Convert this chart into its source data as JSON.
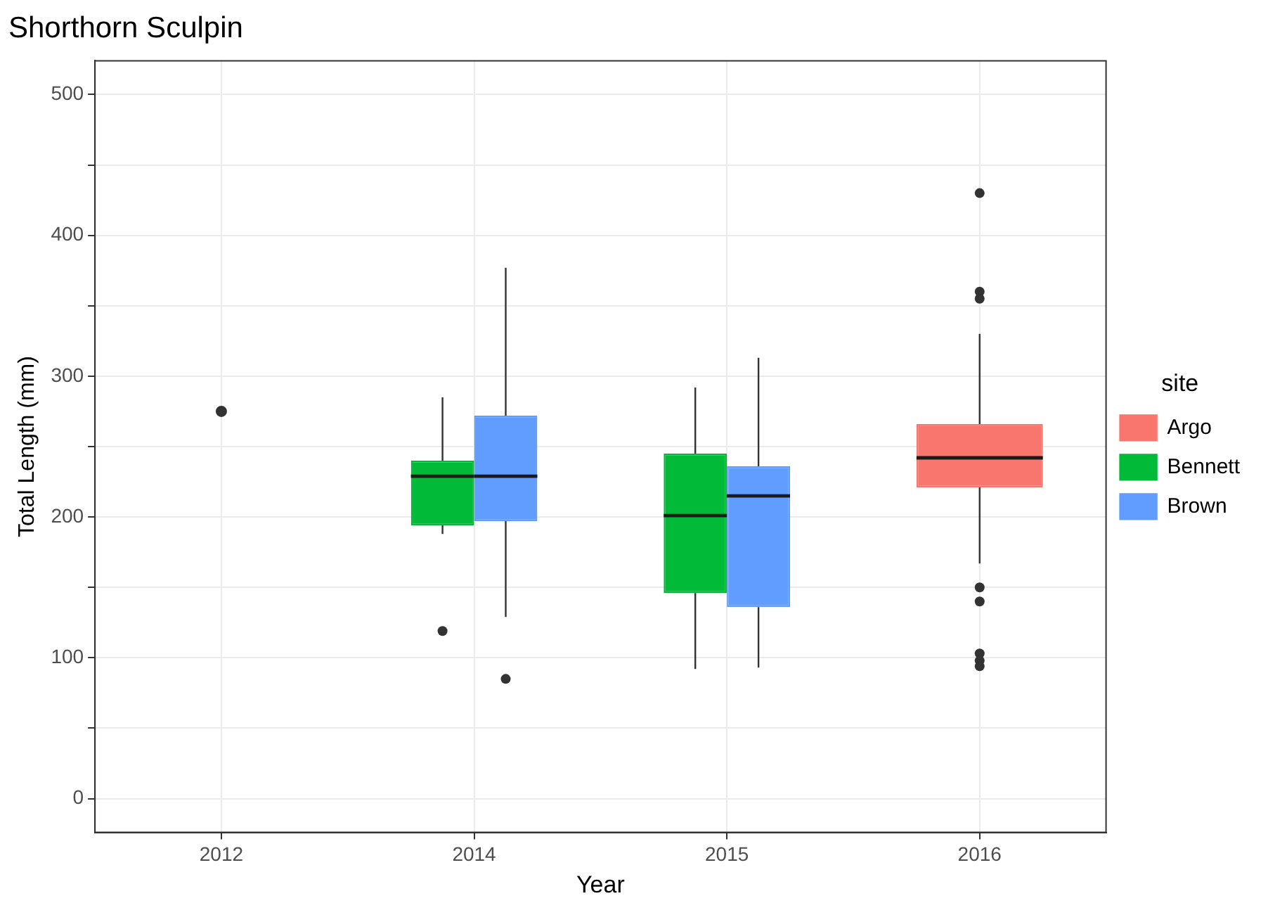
{
  "chart_data": {
    "type": "box",
    "title": "Shorthorn Sculpin",
    "xlabel": "Year",
    "ylabel": "Total Length (mm)",
    "legend_title": "site",
    "legend": "right",
    "grid": true,
    "categories": [
      "2012",
      "2014",
      "2015",
      "2016"
    ],
    "ylim": [
      -24,
      524
    ],
    "yticks": [
      0,
      {
        "value": 50,
        "label": null
      },
      100,
      {
        "value": 150,
        "label": null
      },
      200,
      {
        "value": 250,
        "label": null
      },
      300,
      {
        "value": 350,
        "label": null
      },
      400,
      {
        "value": 450,
        "label": null
      },
      500
    ],
    "series": [
      {
        "name": "Argo",
        "color": "#f8766d",
        "boxes": [
          null,
          null,
          null,
          {
            "low": 167,
            "q1": 221,
            "median": 242,
            "q3": 266,
            "high": 330,
            "outliers": [
              430,
              360,
              355,
              150,
              140,
              103,
              98,
              94
            ]
          }
        ]
      },
      {
        "name": "Bennett",
        "color": "#00ba38",
        "boxes": [
          null,
          {
            "low": 188,
            "q1": 194,
            "median": 229,
            "q3": 240,
            "high": 285,
            "outliers": [
              119
            ]
          },
          {
            "low": 92,
            "q1": 146,
            "median": 201,
            "q3": 245,
            "high": 292
          },
          null
        ]
      },
      {
        "name": "Brown",
        "color": "#619cff",
        "boxes": [
          null,
          {
            "low": 129,
            "q1": 197,
            "median": 229,
            "q3": 272,
            "high": 377,
            "outliers": [
              85
            ]
          },
          {
            "low": 93,
            "q1": 136,
            "median": 215,
            "q3": 236,
            "high": 313
          },
          null
        ]
      },
      {
        "type": "scatter",
        "color": "#333333",
        "values": [
          275,
          null,
          null,
          null
        ]
      }
    ]
  }
}
